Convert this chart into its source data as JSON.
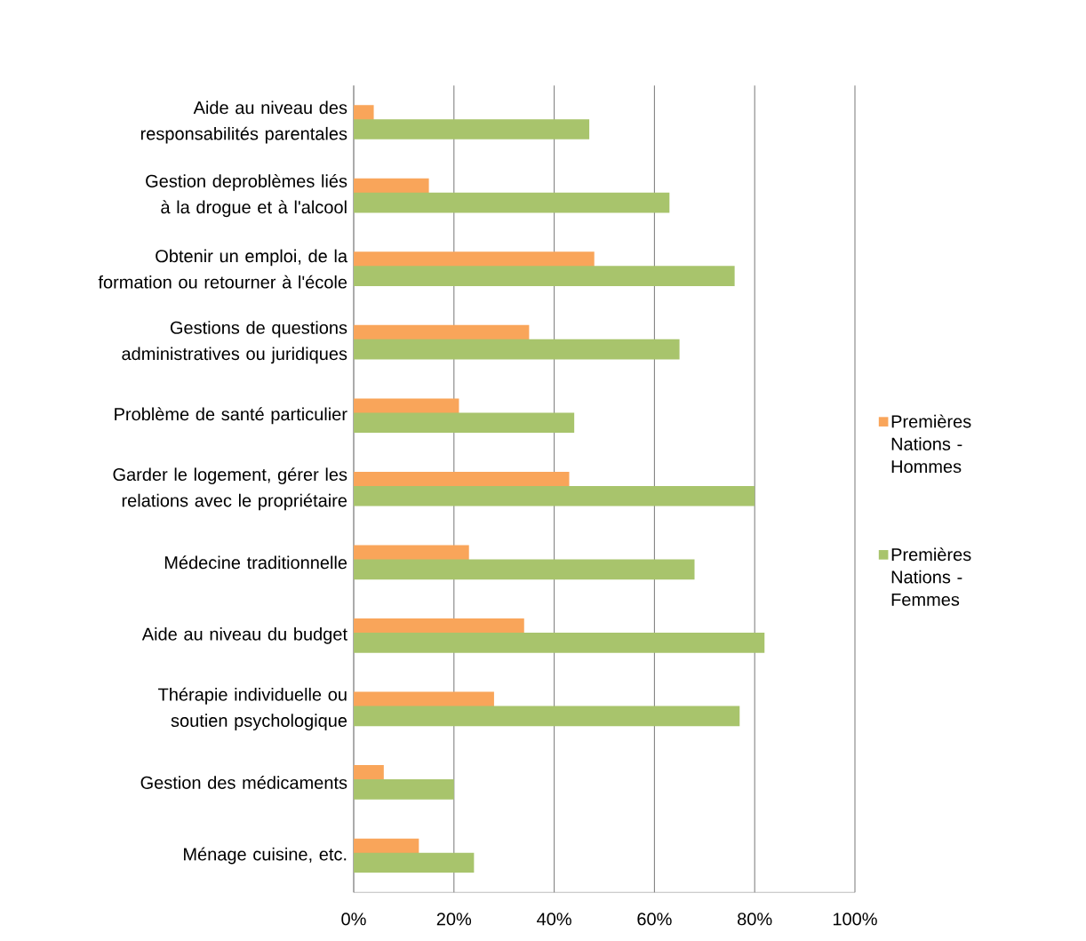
{
  "chart_data": {
    "type": "bar",
    "orientation": "horizontal",
    "categories": [
      "Aide au niveau des responsabilités parentales",
      "Gestion deproblèmes liés à la drogue et à l'alcool",
      "Obtenir un emploi, de la formation ou retourner à l'école",
      "Gestions de questions administratives ou juridiques",
      "Problème de santé particulier",
      "Garder le logement, gérer les relations avec le propriétaire",
      "Médecine traditionnelle",
      "Aide au niveau du budget",
      "Thérapie individuelle ou soutien psychologique",
      "Gestion des médicaments",
      "Ménage cuisine, etc."
    ],
    "series": [
      {
        "name": "Premières Nations - Hommes",
        "color": "#f9a55a",
        "values": [
          4,
          15,
          48,
          35,
          21,
          43,
          23,
          34,
          28,
          6,
          13
        ]
      },
      {
        "name": "Premières Nations - Femmes",
        "color": "#a8c46c",
        "values": [
          47,
          63,
          76,
          65,
          44,
          80,
          68,
          82,
          77,
          20,
          24
        ]
      }
    ],
    "xlim": [
      0,
      100
    ],
    "xticks": [
      {
        "value": 0,
        "label": "0%"
      },
      {
        "value": 20,
        "label": "20%"
      },
      {
        "value": 40,
        "label": "40%"
      },
      {
        "value": 60,
        "label": "60%"
      },
      {
        "value": 80,
        "label": "80%"
      },
      {
        "value": 100,
        "label": "100%"
      }
    ],
    "grid": "x",
    "legend": "right"
  }
}
